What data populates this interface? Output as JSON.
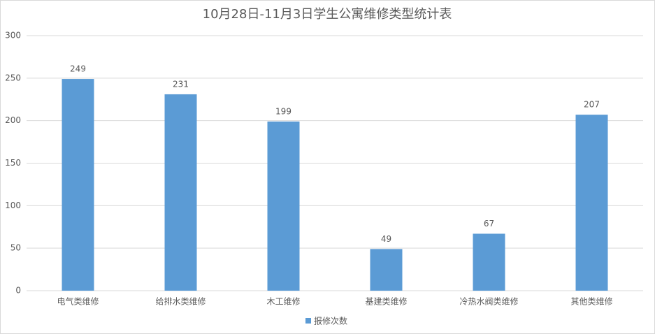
{
  "chart_data": {
    "type": "bar",
    "title": "10月28日-11月3日学生公寓维修类型统计表",
    "categories": [
      "电气类维修",
      "给排水类维修",
      "木工维修",
      "基建类维修",
      "冷热水阀类维修",
      "其他类维修"
    ],
    "series": [
      {
        "name": "报修次数",
        "color": "#5b9bd5",
        "values": [
          249,
          231,
          199,
          49,
          67,
          207
        ]
      }
    ],
    "ylim": [
      0,
      300
    ],
    "yticks": [
      0,
      50,
      100,
      150,
      200,
      250,
      300
    ],
    "grid": true,
    "legend": "bottom"
  }
}
